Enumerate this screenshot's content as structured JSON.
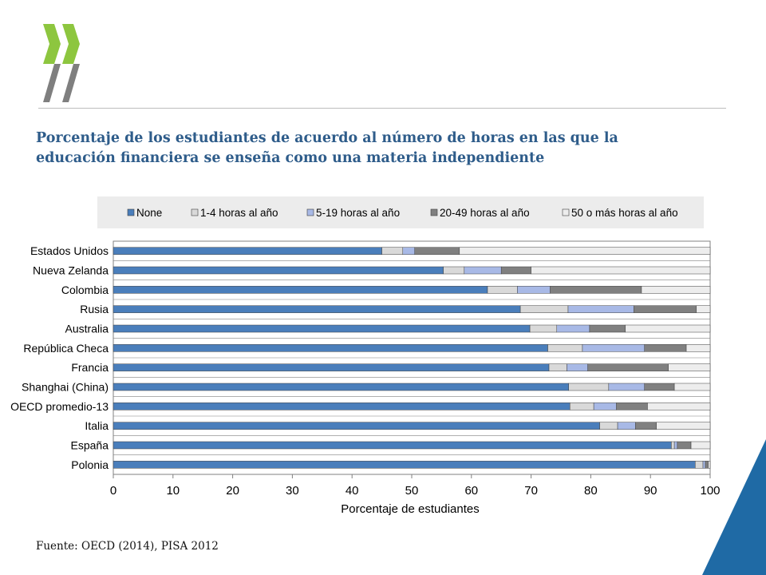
{
  "title_lines": [
    "Porcentaje de los estudiantes de acuerdo al número de horas en las que la",
    "educación financiera se enseña como una materia independiente"
  ],
  "source": "Fuente: OECD (2014), PISA 2012",
  "colors": {
    "title": "#2e5c8a",
    "brand_green": "#8dc63f",
    "brand_grey": "#7f7f7f",
    "corner_blue": "#1f6aa5"
  },
  "chart_data": {
    "type": "bar",
    "orientation": "horizontal",
    "stacked": true,
    "xlabel": "Porcentaje de estudiantes",
    "xlim": [
      0,
      100
    ],
    "xticks": [
      0,
      10,
      20,
      30,
      40,
      50,
      60,
      70,
      80,
      90,
      100
    ],
    "legend_position": "top",
    "categories": [
      "Estados Unidos",
      "Nueva Zelanda",
      "Colombia",
      "Rusia",
      "Australia",
      "República Checa",
      "Francia",
      "Shanghai (China)",
      "OECD promedio-13",
      "Italia",
      "España",
      "Polonia"
    ],
    "series": [
      {
        "name": "None",
        "color": "#4a7ebb",
        "values": [
          45,
          55.3,
          62.7,
          68.2,
          69.8,
          72.8,
          73,
          76.3,
          76.5,
          81.5,
          93.5,
          97.5
        ]
      },
      {
        "name": "1-4 horas al año",
        "color": "#d9d9d9",
        "values": [
          3.5,
          3.5,
          5,
          8,
          4.5,
          5.8,
          3,
          6.7,
          4,
          3,
          0.5,
          1.3
        ]
      },
      {
        "name": "5-19 horas al año",
        "color": "#a8b9e6",
        "values": [
          2,
          6.2,
          5.5,
          11,
          5.5,
          10.4,
          3.5,
          6,
          3.8,
          3,
          0.5,
          0.4
        ]
      },
      {
        "name": "20-49 horas al año",
        "color": "#808080",
        "values": [
          7.5,
          5,
          15.3,
          10.5,
          6,
          7,
          13.5,
          5,
          5.2,
          3.5,
          2.3,
          0.5
        ]
      },
      {
        "name": "50 o más horas al año",
        "color": "#ededed",
        "values": [
          42,
          30,
          11.5,
          2.3,
          14.2,
          4,
          7,
          6,
          10.5,
          9,
          3.2,
          0.3
        ]
      }
    ]
  }
}
